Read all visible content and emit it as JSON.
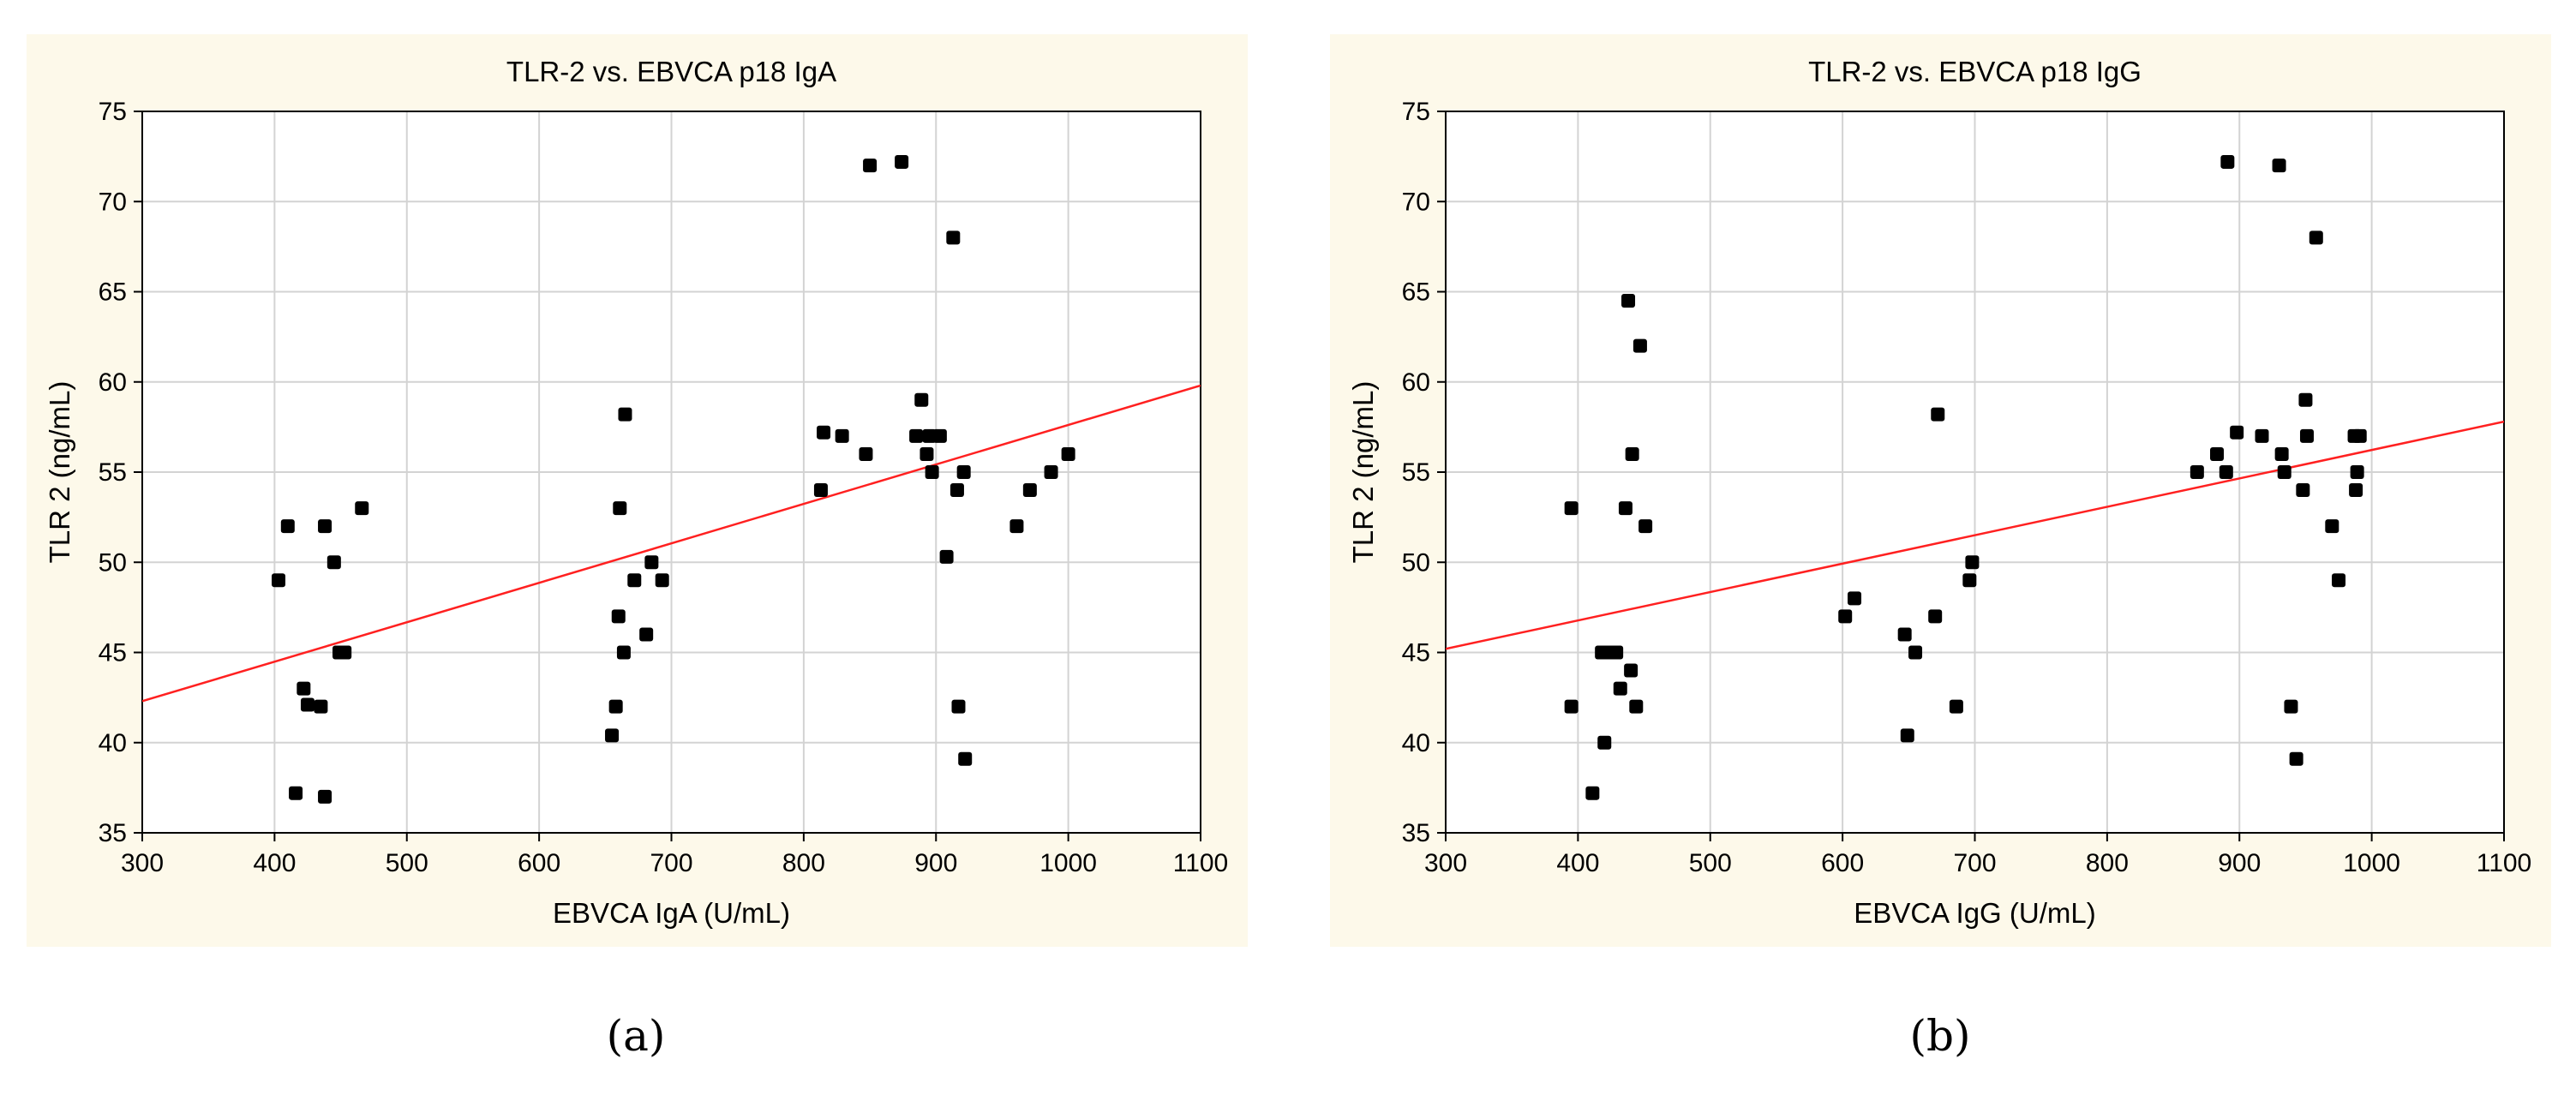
{
  "chart_data": [
    {
      "type": "scatter",
      "title": "TLR-2 vs. EBVCA p18 IgA",
      "xlabel": "EBVCA IgA (U/mL)",
      "ylabel": "TLR 2 (ng/mL)",
      "xlim": [
        300,
        1100
      ],
      "ylim": [
        35,
        75
      ],
      "xticks": [
        300,
        400,
        500,
        600,
        700,
        800,
        900,
        1000,
        1100
      ],
      "yticks": [
        35,
        40,
        45,
        50,
        55,
        60,
        65,
        70,
        75
      ],
      "grid": true,
      "background": "#fdf9ea",
      "point_color": "#000000",
      "line_color": "#ff2020",
      "regression": {
        "x": [
          300,
          1100
        ],
        "y": [
          42.3,
          59.8
        ]
      },
      "points": [
        [
          403,
          49
        ],
        [
          410,
          52
        ],
        [
          416,
          37.2
        ],
        [
          422,
          43
        ],
        [
          425,
          42.1
        ],
        [
          435,
          42
        ],
        [
          438,
          52
        ],
        [
          438,
          37
        ],
        [
          445,
          50
        ],
        [
          449,
          45
        ],
        [
          453,
          45
        ],
        [
          466,
          53
        ],
        [
          655,
          40.4
        ],
        [
          658,
          42
        ],
        [
          660,
          47
        ],
        [
          661,
          53
        ],
        [
          664,
          45
        ],
        [
          665,
          58.2
        ],
        [
          672,
          49
        ],
        [
          681,
          46
        ],
        [
          685,
          50
        ],
        [
          693,
          49
        ],
        [
          813,
          54
        ],
        [
          815,
          57.2
        ],
        [
          829,
          57
        ],
        [
          847,
          56
        ],
        [
          850,
          72
        ],
        [
          874,
          72.2
        ],
        [
          885,
          57
        ],
        [
          889,
          59
        ],
        [
          893,
          56
        ],
        [
          895,
          57
        ],
        [
          897,
          55
        ],
        [
          903,
          57
        ],
        [
          908,
          50.3
        ],
        [
          913,
          68
        ],
        [
          916,
          54
        ],
        [
          917,
          42
        ],
        [
          921,
          55
        ],
        [
          922,
          39.1
        ],
        [
          961,
          52
        ],
        [
          971,
          54
        ],
        [
          987,
          55
        ],
        [
          1000,
          56
        ]
      ]
    },
    {
      "type": "scatter",
      "title": "TLR-2 vs. EBVCA p18 IgG",
      "xlabel": "EBVCA IgG (U/mL)",
      "ylabel": "TLR 2 (ng/mL)",
      "xlim": [
        300,
        1100
      ],
      "ylim": [
        35,
        75
      ],
      "xticks": [
        300,
        400,
        500,
        600,
        700,
        800,
        900,
        1000,
        1100
      ],
      "yticks": [
        35,
        40,
        45,
        50,
        55,
        60,
        65,
        70,
        75
      ],
      "grid": true,
      "background": "#fdf9ea",
      "point_color": "#000000",
      "line_color": "#ff2020",
      "regression": {
        "x": [
          300,
          1100
        ],
        "y": [
          45.2,
          57.8
        ]
      },
      "points": [
        [
          395,
          53
        ],
        [
          395,
          42
        ],
        [
          411,
          37.2
        ],
        [
          418,
          45
        ],
        [
          420,
          40
        ],
        [
          424,
          45
        ],
        [
          429,
          45
        ],
        [
          432,
          43
        ],
        [
          436,
          53
        ],
        [
          438,
          64.5
        ],
        [
          440,
          44
        ],
        [
          441,
          56
        ],
        [
          444,
          42
        ],
        [
          447,
          62
        ],
        [
          451,
          52
        ],
        [
          602,
          47
        ],
        [
          609,
          48
        ],
        [
          647,
          46
        ],
        [
          649,
          40.4
        ],
        [
          655,
          45
        ],
        [
          670,
          47
        ],
        [
          672,
          58.2
        ],
        [
          686,
          42
        ],
        [
          696,
          49
        ],
        [
          698,
          50
        ],
        [
          868,
          55
        ],
        [
          883,
          56
        ],
        [
          890,
          55
        ],
        [
          891,
          72.2
        ],
        [
          898,
          57.2
        ],
        [
          917,
          57
        ],
        [
          930,
          72
        ],
        [
          932,
          56
        ],
        [
          934,
          55
        ],
        [
          939,
          42
        ],
        [
          943,
          39.1
        ],
        [
          948,
          54
        ],
        [
          950,
          59
        ],
        [
          951,
          57
        ],
        [
          958,
          68
        ],
        [
          970,
          52
        ],
        [
          975,
          49
        ],
        [
          987,
          57
        ],
        [
          988,
          54
        ],
        [
          989,
          55
        ],
        [
          991,
          57
        ]
      ]
    }
  ],
  "captions": {
    "a": "(a)",
    "b": "(b)"
  }
}
